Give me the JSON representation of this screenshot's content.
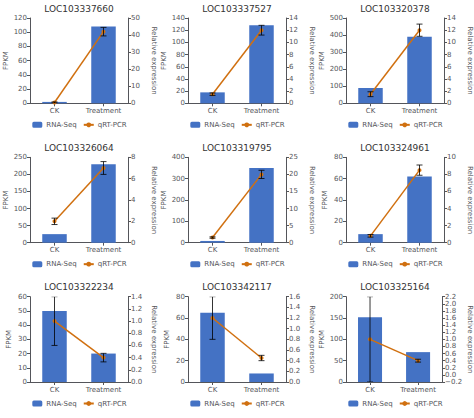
{
  "chart_data": [
    {
      "type": "bar",
      "title": "LOC103337660",
      "categories": [
        "CK",
        "Treatment"
      ],
      "ylabel": "FPKM",
      "y2label": "Relative expression",
      "series": [
        {
          "name": "RNA-Seq",
          "type": "bar",
          "color": "#4472C4",
          "values": [
            2,
            108
          ]
        },
        {
          "name": "qRT-PCR",
          "type": "line",
          "color": "#D07010",
          "marker": "circle",
          "axis": "y2",
          "values": [
            0.5,
            42
          ],
          "errors": [
            0.3,
            2.5
          ]
        }
      ],
      "ylim": [
        0,
        120
      ],
      "yticks": [
        0,
        20,
        40,
        60,
        80,
        100,
        120
      ],
      "y2lim": [
        0,
        50
      ],
      "y2ticks": [
        0,
        10,
        20,
        30,
        40,
        50
      ],
      "grid": false,
      "legend": "bottom"
    },
    {
      "type": "bar",
      "title": "LOC103337527",
      "categories": [
        "CK",
        "Treatment"
      ],
      "ylabel": "FPKM",
      "y2label": "Relative expression",
      "series": [
        {
          "name": "RNA-Seq",
          "type": "bar",
          "color": "#4472C4",
          "values": [
            18,
            128
          ]
        },
        {
          "name": "qRT-PCR",
          "type": "line",
          "color": "#D07010",
          "marker": "circle",
          "axis": "y2",
          "values": [
            1.5,
            12
          ],
          "errors": [
            0.2,
            0.8
          ]
        }
      ],
      "ylim": [
        0,
        140
      ],
      "yticks": [
        0,
        20,
        40,
        60,
        80,
        100,
        120,
        140
      ],
      "y2lim": [
        0,
        14
      ],
      "y2ticks": [
        0,
        2,
        4,
        6,
        8,
        10,
        12,
        14
      ],
      "grid": false,
      "legend": "bottom"
    },
    {
      "type": "bar",
      "title": "LOC103320378",
      "categories": [
        "CK",
        "Treatment"
      ],
      "ylabel": "FPKM",
      "y2label": "Relative expression",
      "series": [
        {
          "name": "RNA-Seq",
          "type": "bar",
          "color": "#4472C4",
          "values": [
            90,
            390
          ]
        },
        {
          "name": "qRT-PCR",
          "type": "line",
          "color": "#D07010",
          "marker": "circle",
          "axis": "y2",
          "values": [
            1.5,
            12
          ],
          "errors": [
            0.4,
            1.0
          ]
        }
      ],
      "ylim": [
        0,
        500
      ],
      "yticks": [
        0,
        100,
        200,
        300,
        400,
        500
      ],
      "y2lim": [
        0,
        14
      ],
      "y2ticks": [
        0,
        2,
        4,
        6,
        8,
        10,
        12,
        14
      ],
      "grid": false,
      "legend": "bottom"
    },
    {
      "type": "bar",
      "title": "LOC103326064",
      "categories": [
        "CK",
        "Treatment"
      ],
      "ylabel": "FPKM",
      "y2label": "Relative expression",
      "series": [
        {
          "name": "RNA-Seq",
          "type": "bar",
          "color": "#4472C4",
          "values": [
            25,
            230
          ]
        },
        {
          "name": "qRT-PCR",
          "type": "line",
          "color": "#D07010",
          "marker": "circle",
          "axis": "y2",
          "values": [
            2.0,
            7.0
          ],
          "errors": [
            0.3,
            0.6
          ]
        }
      ],
      "ylim": [
        0,
        250
      ],
      "yticks": [
        0,
        50,
        100,
        150,
        200,
        250
      ],
      "y2lim": [
        0,
        8
      ],
      "y2ticks": [
        0,
        2,
        4,
        6,
        8
      ],
      "grid": false,
      "legend": "bottom"
    },
    {
      "type": "bar",
      "title": "LOC103319795",
      "categories": [
        "CK",
        "Treatment"
      ],
      "ylabel": "FPKM",
      "y2label": "Relative expression",
      "series": [
        {
          "name": "RNA-Seq",
          "type": "bar",
          "color": "#4472C4",
          "values": [
            8,
            350
          ]
        },
        {
          "name": "qRT-PCR",
          "type": "line",
          "color": "#D07010",
          "marker": "circle",
          "axis": "y2",
          "values": [
            1.5,
            20
          ],
          "errors": [
            0.2,
            1.2
          ]
        }
      ],
      "ylim": [
        0,
        400
      ],
      "yticks": [
        0,
        100,
        200,
        300,
        400
      ],
      "y2lim": [
        0,
        25
      ],
      "y2ticks": [
        0,
        5,
        10,
        15,
        20,
        25
      ],
      "grid": false,
      "legend": "bottom"
    },
    {
      "type": "bar",
      "title": "LOC103324961",
      "categories": [
        "CK",
        "Treatment"
      ],
      "ylabel": "FPKM",
      "y2label": "Relative expression",
      "series": [
        {
          "name": "RNA-Seq",
          "type": "bar",
          "color": "#4472C4",
          "values": [
            8,
            62
          ]
        },
        {
          "name": "qRT-PCR",
          "type": "line",
          "color": "#D07010",
          "marker": "circle",
          "axis": "y2",
          "values": [
            0.8,
            8.5
          ],
          "errors": [
            0.15,
            0.6
          ]
        }
      ],
      "ylim": [
        0,
        80
      ],
      "yticks": [
        0,
        20,
        40,
        60,
        80
      ],
      "y2lim": [
        0,
        10
      ],
      "y2ticks": [
        0,
        2,
        4,
        6,
        8,
        10
      ],
      "grid": false,
      "legend": "bottom"
    },
    {
      "type": "bar",
      "title": "LOC103322234",
      "categories": [
        "CK",
        "Treatment"
      ],
      "ylabel": "FPKM",
      "y2label": "Relative expression",
      "series": [
        {
          "name": "RNA-Seq",
          "type": "bar",
          "color": "#4472C4",
          "values": [
            50,
            20
          ]
        },
        {
          "name": "qRT-PCR",
          "type": "line",
          "color": "#D07010",
          "marker": "circle",
          "axis": "y2",
          "values": [
            1.0,
            0.4
          ],
          "errors": [
            0.4,
            0.07
          ]
        }
      ],
      "ylim": [
        0,
        60
      ],
      "yticks": [
        0,
        10,
        20,
        30,
        40,
        50,
        60
      ],
      "y2lim": [
        0,
        1.4
      ],
      "y2ticks": [
        {
          "value": 0,
          "label": "0.0"
        },
        0.2,
        0.4,
        0.6,
        0.8,
        {
          "value": 1.0,
          "label": "1.0"
        },
        1.2,
        1.4
      ],
      "grid": false,
      "legend": "bottom"
    },
    {
      "type": "bar",
      "title": "LOC103342117",
      "categories": [
        "CK",
        "Treatment"
      ],
      "ylabel": "FPKM",
      "y2label": "Relative expression",
      "series": [
        {
          "name": "RNA-Seq",
          "type": "bar",
          "color": "#4472C4",
          "values": [
            65,
            8
          ]
        },
        {
          "name": "qRT-PCR",
          "type": "line",
          "color": "#D07010",
          "marker": "circle",
          "axis": "y2",
          "values": [
            1.2,
            0.45
          ],
          "errors": [
            0.4,
            0.05
          ]
        }
      ],
      "ylim": [
        0,
        80
      ],
      "yticks": [
        0,
        20,
        40,
        60,
        80
      ],
      "y2lim": [
        0,
        1.6
      ],
      "y2ticks": [
        {
          "value": 0,
          "label": "0.0"
        },
        0.2,
        0.4,
        0.6,
        0.8,
        {
          "value": 1.0,
          "label": "1.0"
        },
        1.2,
        1.4,
        1.6
      ],
      "grid": false,
      "legend": "bottom"
    },
    {
      "type": "bar",
      "title": "LOC103325164",
      "categories": [
        "CK",
        "Treatment"
      ],
      "ylabel": "FPKM",
      "y2label": "Relative expression",
      "series": [
        {
          "name": "RNA-Seq",
          "type": "bar",
          "color": "#4472C4",
          "values": [
            152,
            70
          ]
        },
        {
          "name": "qRT-PCR",
          "type": "line",
          "color": "#D07010",
          "marker": "circle",
          "axis": "y2",
          "values": [
            1.0,
            0.4
          ],
          "errors": [
            1.2,
            0.04
          ]
        }
      ],
      "ylim": [
        0,
        200
      ],
      "yticks": [
        0,
        50,
        100,
        150,
        200
      ],
      "y2lim": [
        -0.2,
        2.2
      ],
      "y2ticks": [
        {
          "value": -0.2,
          "label": "−0.2"
        },
        {
          "value": 0,
          "label": "0.0"
        },
        0.2,
        0.4,
        0.6,
        0.8,
        {
          "value": 1.0,
          "label": "1.0"
        },
        1.2,
        1.4,
        1.6,
        1.8,
        {
          "value": 2.0,
          "label": "2.0"
        },
        2.2
      ],
      "grid": false,
      "legend": "bottom"
    }
  ]
}
